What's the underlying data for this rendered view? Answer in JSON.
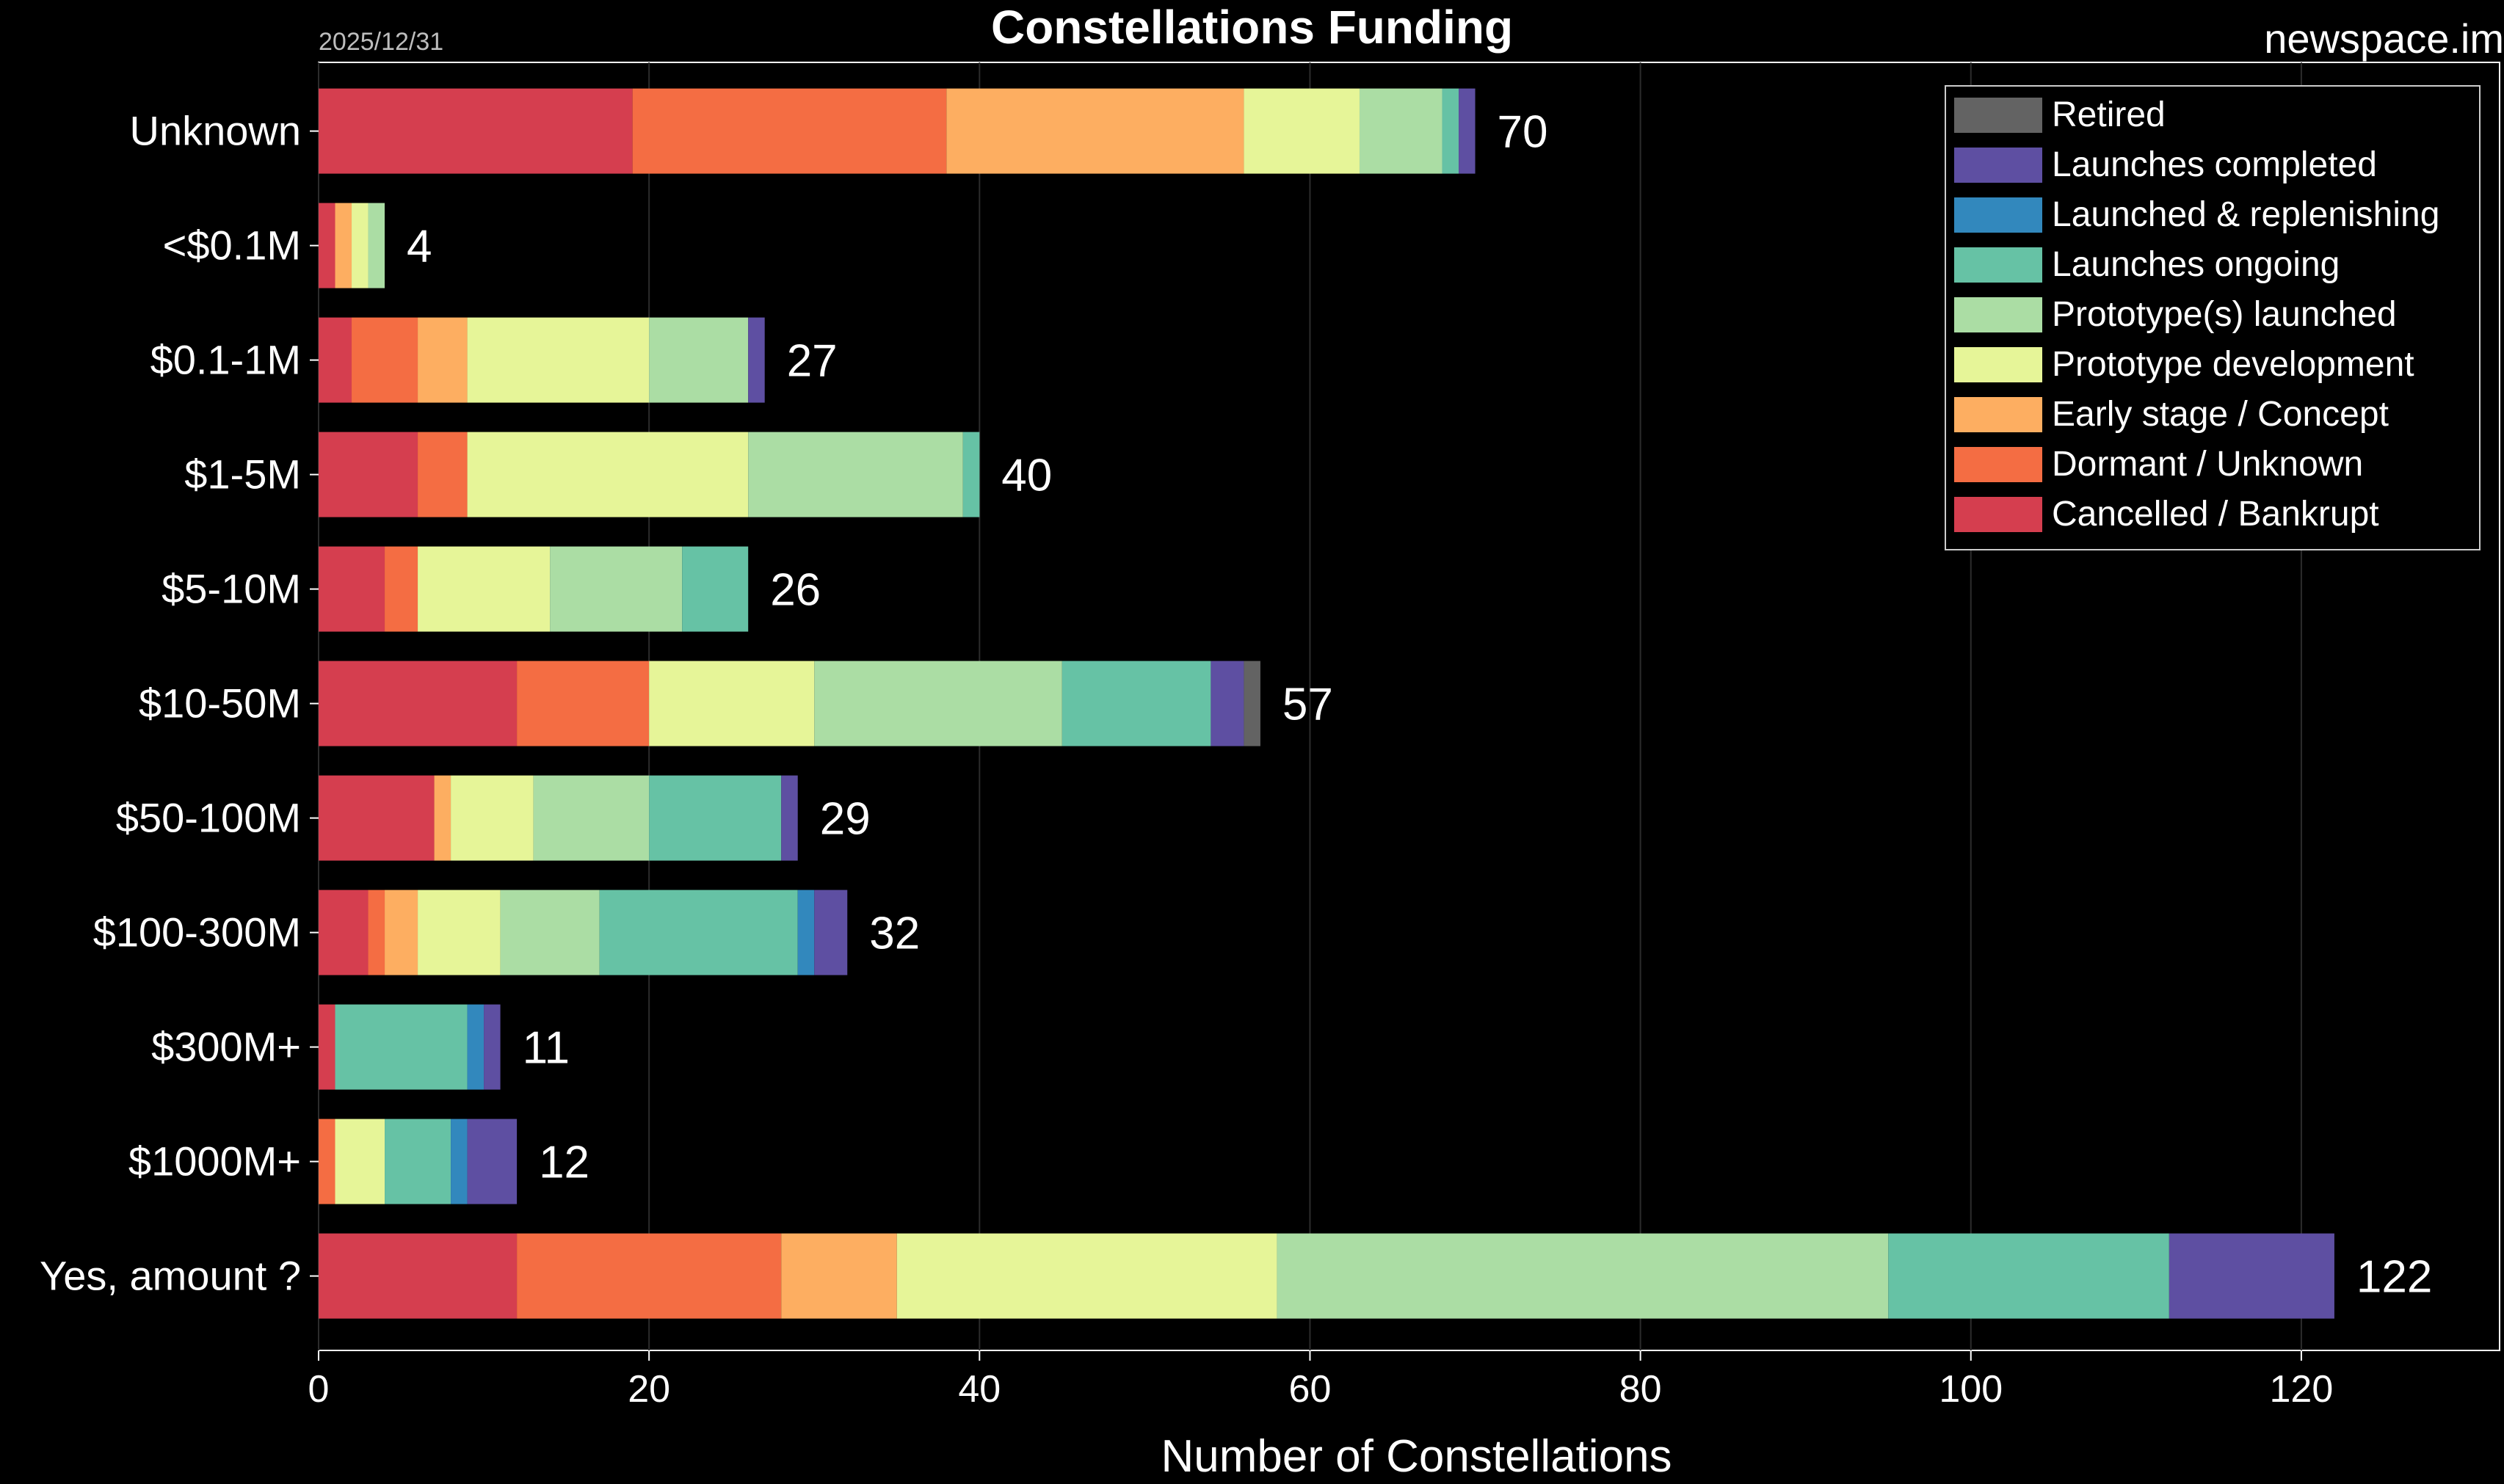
{
  "header": {
    "title": "Constellations Funding",
    "date": "2025/12/31",
    "watermark": "newspace.im"
  },
  "chart_data": {
    "type": "bar",
    "orientation": "horizontal",
    "stacked": true,
    "title": "Constellations Funding",
    "xlabel": "Number of Constellations",
    "ylabel": "",
    "xlim": [
      0,
      132
    ],
    "xticks": [
      0,
      20,
      40,
      60,
      80,
      100,
      120
    ],
    "grid": "vertical",
    "legend_position": "top-right",
    "categories": [
      "Unknown",
      "<$0.1M",
      "$0.1-1M",
      "$1-5M",
      "$5-10M",
      "$10-50M",
      "$50-100M",
      "$100-300M",
      "$300M+",
      "$1000M+",
      "Yes, amount ?"
    ],
    "totals": [
      70,
      4,
      27,
      40,
      26,
      57,
      29,
      32,
      11,
      12,
      122
    ],
    "series": [
      {
        "name": "Cancelled / Bankrupt",
        "color": "#d53e4f",
        "values": [
          19,
          1,
          2,
          6,
          4,
          12,
          7,
          3,
          1,
          0,
          12
        ]
      },
      {
        "name": "Dormant / Unknown",
        "color": "#f46d43",
        "values": [
          19,
          0,
          4,
          3,
          2,
          8,
          0,
          1,
          0,
          1,
          16
        ]
      },
      {
        "name": "Early stage / Concept",
        "color": "#fdae61",
        "values": [
          18,
          1,
          3,
          0,
          0,
          0,
          1,
          2,
          0,
          0,
          7
        ]
      },
      {
        "name": "Prototype development",
        "color": "#e6f598",
        "values": [
          7,
          1,
          11,
          17,
          8,
          10,
          5,
          5,
          0,
          3,
          23
        ]
      },
      {
        "name": "Prototype(s) launched",
        "color": "#abdda4",
        "values": [
          5,
          1,
          6,
          13,
          8,
          15,
          7,
          6,
          0,
          0,
          37
        ]
      },
      {
        "name": "Launches ongoing",
        "color": "#66c2a5",
        "values": [
          1,
          0,
          0,
          1,
          4,
          9,
          8,
          12,
          8,
          4,
          17
        ]
      },
      {
        "name": "Launched & replenishing",
        "color": "#3288bd",
        "values": [
          0,
          0,
          0,
          0,
          0,
          0,
          0,
          1,
          1,
          1,
          0
        ]
      },
      {
        "name": "Launches completed",
        "color": "#5e4fa2",
        "values": [
          1,
          0,
          1,
          0,
          0,
          2,
          1,
          2,
          1,
          3,
          10
        ]
      },
      {
        "name": "Retired",
        "color": "#636363",
        "values": [
          0,
          0,
          0,
          0,
          0,
          1,
          0,
          0,
          0,
          0,
          0
        ]
      }
    ]
  }
}
